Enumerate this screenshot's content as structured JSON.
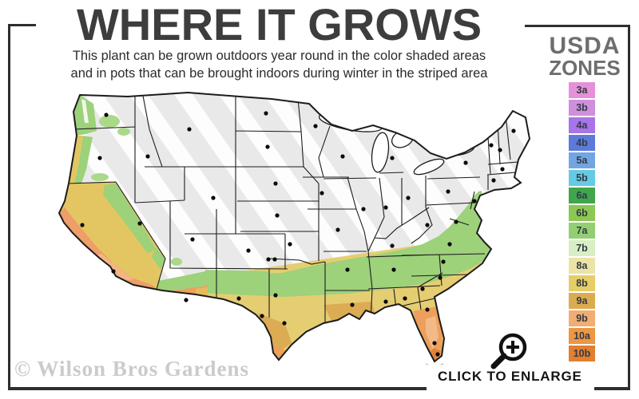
{
  "title": "WHERE IT GROWS",
  "subtitle": {
    "line1": "This plant can be grown outdoors year round in the color shaded areas",
    "line2": "and in pots that can be brought indoors during winter in the striped area"
  },
  "legend": {
    "title_line1": "USDA",
    "title_line2": "ZONES",
    "zones": [
      {
        "label": "3a",
        "color": "#E591D9"
      },
      {
        "label": "3b",
        "color": "#D08FDC"
      },
      {
        "label": "4a",
        "color": "#A874E9"
      },
      {
        "label": "4b",
        "color": "#5C7ADA"
      },
      {
        "label": "5a",
        "color": "#73A5E3"
      },
      {
        "label": "5b",
        "color": "#65CAE3"
      },
      {
        "label": "6a",
        "color": "#40A64D"
      },
      {
        "label": "6b",
        "color": "#8DC754"
      },
      {
        "label": "7a",
        "color": "#93CE73"
      },
      {
        "label": "7b",
        "color": "#D8EEC4"
      },
      {
        "label": "8a",
        "color": "#EBE4A5"
      },
      {
        "label": "8b",
        "color": "#E5CE68"
      },
      {
        "label": "9a",
        "color": "#DBAC4F"
      },
      {
        "label": "9b",
        "color": "#F1AD73"
      },
      {
        "label": "10a",
        "color": "#ED9643"
      },
      {
        "label": "10b",
        "color": "#E27F30"
      }
    ]
  },
  "map": {
    "description": "USDA hardiness zones map of the contiguous United States; colored (growable outdoors) in the west coast and south, gray striped (pots, bring indoors) in the north",
    "watermark": "© Wilson Bros Gardens",
    "colors": {
      "striped_area": "#E9E9E9",
      "stripe": "#FFFFFF",
      "outline": "#1C1C1C",
      "green": "#9DD17A",
      "light_green": "#ABD98A",
      "pale_green": "#D8EEC4",
      "yellow": "#E5CD72",
      "gold": "#E3C662",
      "tan": "#D9A851",
      "orange": "#EDA05C",
      "peach": "#F3BA88",
      "deep_orange": "#E2823A",
      "salmon": "#EE9E68"
    }
  },
  "enlarge": {
    "label": "CLICK TO ENLARGE",
    "icon": "magnifier-plus"
  }
}
